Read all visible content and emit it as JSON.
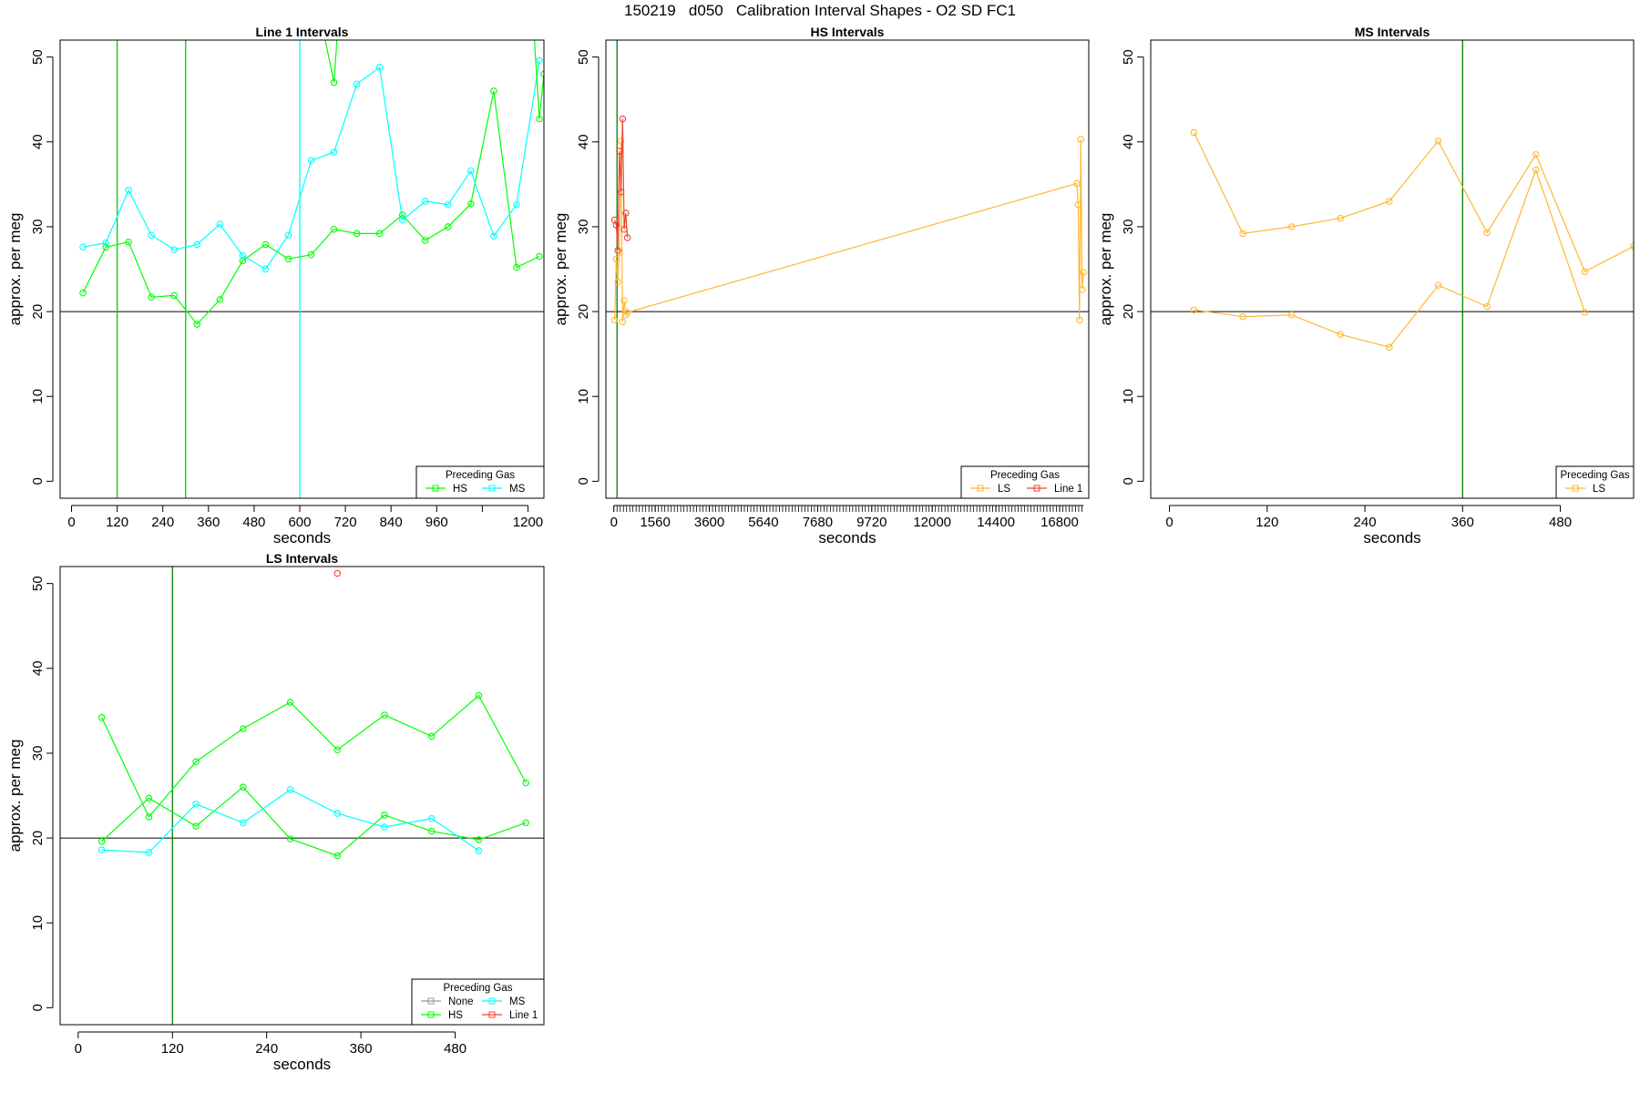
{
  "figure": {
    "title": "150219   d050   Calibration Interval Shapes - O2 SD FC1"
  },
  "chart_data": [
    {
      "type": "line",
      "title": "Line 1 Intervals",
      "xlabel": "seconds",
      "ylabel": "approx. per meg",
      "xlim": [
        -30,
        1242
      ],
      "ylim": [
        -2,
        52
      ],
      "xticks": [
        0,
        120,
        240,
        360,
        480,
        600,
        720,
        840,
        960,
        1080,
        1200
      ],
      "xtick_labels": [
        "0",
        "120",
        "240",
        "360",
        "480",
        "600",
        "720",
        "840",
        "960",
        "",
        "1200"
      ],
      "yticks": [
        0,
        10,
        20,
        30,
        40,
        50
      ],
      "hline": 20,
      "vlines": [
        {
          "x": 120,
          "color": "#00cc00"
        },
        {
          "x": 300,
          "color": "#00cc00"
        },
        {
          "x": 600,
          "color": "#00ffff"
        }
      ],
      "series": [
        {
          "name": "HS",
          "color": "#00ff00",
          "x": [
            30,
            90,
            150,
            210,
            270,
            330,
            390,
            450,
            510,
            570,
            630,
            690,
            750,
            810,
            870,
            930,
            990,
            1050,
            1110,
            1170,
            1230
          ],
          "y": [
            22.2,
            27.6,
            28.2,
            21.7,
            21.9,
            18.5,
            21.4,
            26.0,
            27.9,
            26.2,
            26.7,
            29.7,
            29.2,
            29.2,
            31.4,
            28.4,
            30.0,
            32.7,
            46.0,
            25.2,
            26.5
          ]
        },
        {
          "name": "MS",
          "color": "#00ffff",
          "x": [
            30,
            90,
            150,
            210,
            270,
            330,
            390,
            450,
            510,
            570,
            630,
            690,
            750,
            810,
            870,
            930,
            990,
            1050,
            1110,
            1170,
            1230
          ],
          "y": [
            27.6,
            28.1,
            34.3,
            29.0,
            27.3,
            27.9,
            30.3,
            26.6,
            25.0,
            29.0,
            37.8,
            38.8,
            46.8,
            48.8,
            30.8,
            33.0,
            32.6,
            36.6,
            28.9,
            32.6,
            49.6
          ]
        },
        {
          "name": "",
          "color": "#00ff00",
          "x": [
            660,
            690,
            700,
            1215,
            1230,
            1242
          ],
          "y": [
            53.5,
            47.0,
            53.5,
            53.5,
            42.7,
            48.0
          ]
        }
      ],
      "legend": {
        "title": "Preceding Gas",
        "position": "bottom-right",
        "entries": [
          "HS",
          "MS"
        ]
      }
    },
    {
      "type": "line",
      "title": "HS Intervals",
      "xlabel": "seconds",
      "ylabel": "approx. per meg",
      "xlim": [
        -300,
        17900
      ],
      "ylim": [
        -2,
        52
      ],
      "xticks": [
        0,
        1560,
        3600,
        5640,
        7680,
        9720,
        12000,
        14400,
        16800
      ],
      "xtick_labels": [
        "0",
        "1560",
        "3600",
        "5640",
        "7680",
        "9720",
        "12000",
        "14400",
        "16800"
      ],
      "yticks": [
        0,
        10,
        20,
        30,
        40,
        50
      ],
      "hline": 20,
      "vlines": [
        {
          "x": 120,
          "color": "#008000"
        }
      ],
      "series": [
        {
          "name": "LS",
          "color": "#ffb833",
          "x": [
            30,
            90,
            150,
            210,
            270,
            330,
            390,
            450,
            510,
            17450,
            17500,
            17550,
            17600,
            17650,
            17700
          ],
          "y": [
            19.0,
            26.2,
            23.5,
            27.0,
            40.1,
            18.8,
            21.3,
            19.6,
            19.9,
            35.1,
            32.6,
            19.0,
            40.3,
            22.6,
            24.6
          ]
        },
        {
          "name": "Line 1",
          "color": "#ee4433",
          "x": [
            30,
            90,
            150,
            210,
            270,
            330,
            390,
            450,
            510
          ],
          "y": [
            30.8,
            30.2,
            27.2,
            38.9,
            34.1,
            42.7,
            29.7,
            31.6,
            28.7
          ]
        }
      ],
      "legend": {
        "title": "Preceding Gas",
        "position": "bottom-right",
        "entries": [
          "LS",
          "Line 1"
        ]
      }
    },
    {
      "type": "line",
      "title": "MS Intervals",
      "xlabel": "seconds",
      "ylabel": "approx. per meg",
      "xlim": [
        -23,
        570
      ],
      "ylim": [
        -2,
        52
      ],
      "xticks": [
        0,
        120,
        240,
        360,
        480
      ],
      "xtick_labels": [
        "0",
        "120",
        "240",
        "360",
        "480"
      ],
      "yticks": [
        0,
        10,
        20,
        30,
        40,
        50
      ],
      "hline": 20,
      "vlines": [
        {
          "x": 360,
          "color": "#008000"
        }
      ],
      "series": [
        {
          "name": "LS",
          "color": "#ffb833",
          "x": [
            30,
            90,
            150,
            210,
            270,
            330,
            390,
            450,
            510,
            570
          ],
          "y": [
            41.1,
            29.2,
            30.0,
            31.0,
            33.0,
            40.1,
            29.3,
            38.5,
            24.7,
            27.7
          ]
        },
        {
          "name": "",
          "color": "#ffb833",
          "x": [
            30,
            90,
            150,
            210,
            270,
            330,
            390,
            450,
            510
          ],
          "y": [
            20.2,
            19.4,
            19.6,
            17.3,
            15.8,
            23.1,
            20.6,
            36.7,
            19.9
          ]
        }
      ],
      "legend": {
        "title": "Preceding Gas",
        "position": "bottom-right",
        "entries": [
          "LS"
        ]
      }
    },
    {
      "type": "line",
      "title": "LS Intervals",
      "xlabel": "seconds",
      "ylabel": "approx. per meg",
      "xlim": [
        -23,
        593
      ],
      "ylim": [
        -2,
        52
      ],
      "xticks": [
        0,
        120,
        240,
        360,
        480
      ],
      "xtick_labels": [
        "0",
        "120",
        "240",
        "360",
        "480"
      ],
      "yticks": [
        0,
        10,
        20,
        30,
        40,
        50
      ],
      "hline": 20,
      "vlines": [
        {
          "x": 120,
          "color": "#008000"
        }
      ],
      "series": [
        {
          "name": "None",
          "color": "#999999",
          "x": [],
          "y": []
        },
        {
          "name": "HS",
          "color": "#00ff00",
          "x": [
            30,
            90,
            150,
            210,
            270,
            330,
            390,
            450,
            510,
            570
          ],
          "y": [
            34.2,
            22.5,
            29.0,
            32.9,
            36.0,
            30.4,
            34.5,
            32.0,
            36.8,
            26.5
          ]
        },
        {
          "name": "",
          "color": "#00ff00",
          "x": [
            30,
            90,
            150,
            210,
            270,
            330,
            390,
            450,
            510,
            570
          ],
          "y": [
            19.6,
            24.7,
            21.4,
            26.0,
            19.9,
            17.9,
            22.7,
            20.8,
            19.8,
            21.8
          ]
        },
        {
          "name": "MS",
          "color": "#00ffff",
          "x": [
            30,
            90,
            150,
            210,
            270,
            330,
            390,
            450,
            510
          ],
          "y": [
            18.6,
            18.3,
            24.0,
            21.8,
            25.7,
            22.9,
            21.3,
            22.3,
            18.5
          ]
        },
        {
          "name": "Line 1",
          "color": "#ee4433",
          "x": [
            330
          ],
          "y": [
            51.2
          ]
        }
      ],
      "legend": {
        "title": "Preceding Gas",
        "position": "bottom-right",
        "entries": [
          "None",
          "MS",
          "HS",
          "Line 1"
        ]
      }
    }
  ]
}
